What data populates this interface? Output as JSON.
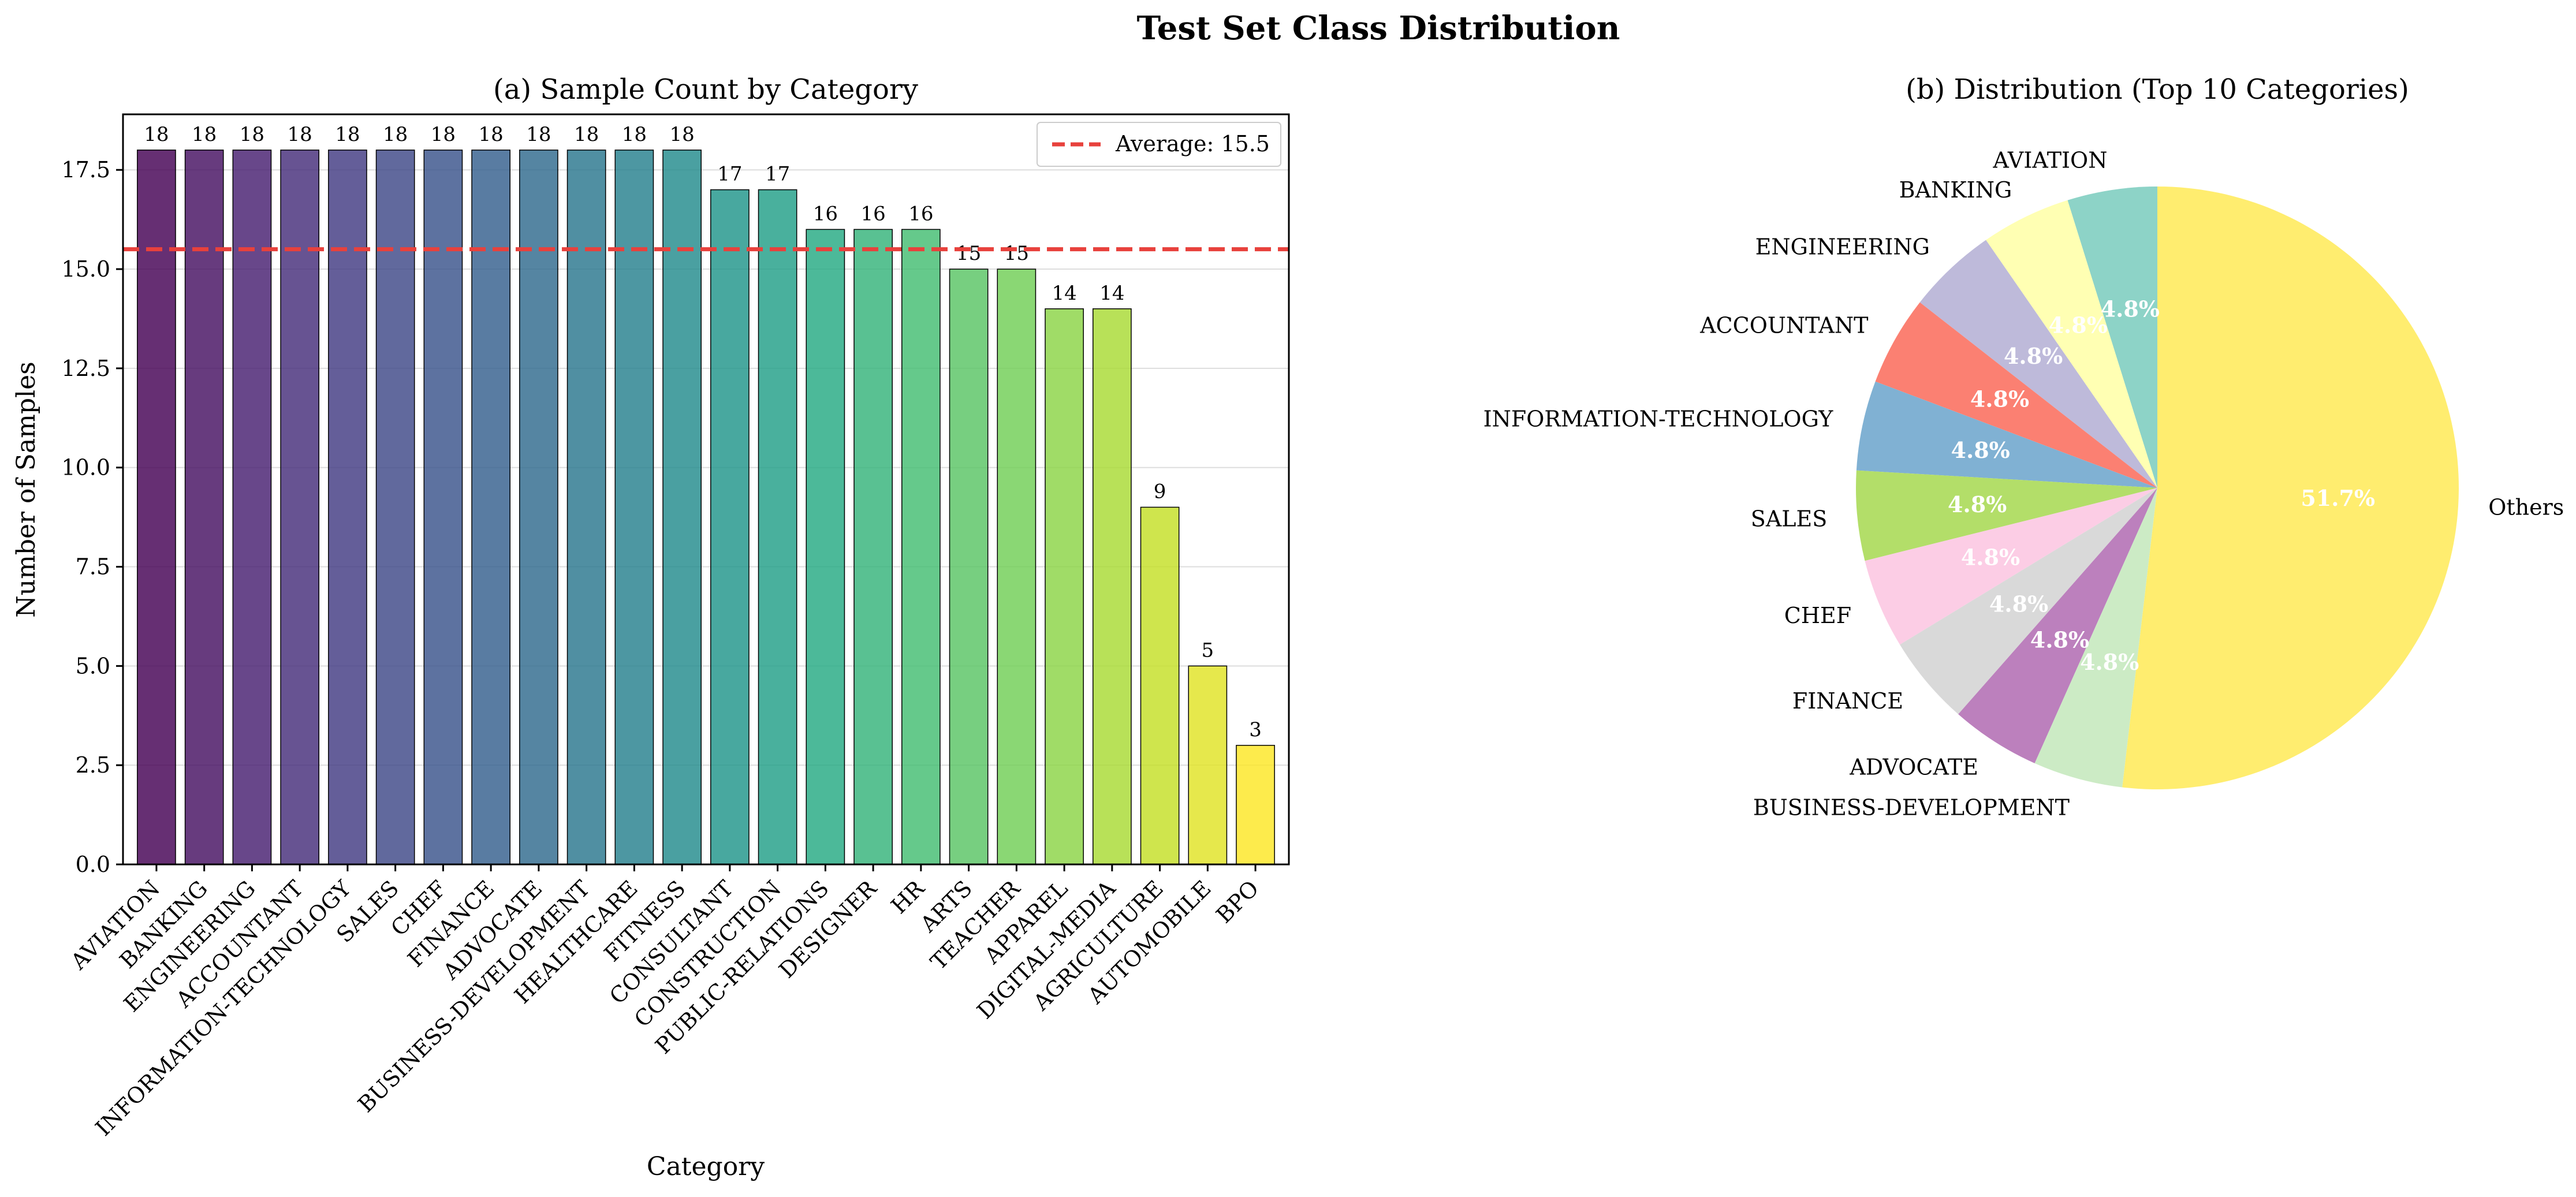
{
  "figure": {
    "suptitle": "Test Set Class Distribution"
  },
  "chart_data": [
    {
      "type": "bar",
      "title": "(a) Sample Count by Category",
      "xlabel": "Category",
      "ylabel": "Number of Samples",
      "ylim": [
        0,
        18.9
      ],
      "yticks": [
        "0.0",
        "2.5",
        "5.0",
        "7.5",
        "10.0",
        "12.5",
        "15.0",
        "17.5"
      ],
      "grid": "y",
      "colormap": "viridis",
      "categories": [
        "AVIATION",
        "BANKING",
        "ENGINEERING",
        "ACCOUNTANT",
        "INFORMATION-TECHNOLOGY",
        "SALES",
        "CHEF",
        "FINANCE",
        "ADVOCATE",
        "BUSINESS-DEVELOPMENT",
        "HEALTHCARE",
        "FITNESS",
        "CONSULTANT",
        "CONSTRUCTION",
        "PUBLIC-RELATIONS",
        "DESIGNER",
        "HR",
        "ARTS",
        "TEACHER",
        "APPAREL",
        "DIGITAL-MEDIA",
        "AGRICULTURE",
        "AUTOMOBILE",
        "BPO"
      ],
      "values": [
        18,
        18,
        18,
        18,
        18,
        18,
        18,
        18,
        18,
        18,
        18,
        18,
        17,
        17,
        16,
        16,
        16,
        15,
        15,
        14,
        14,
        9,
        5,
        3
      ],
      "data_labels": [
        "18",
        "18",
        "18",
        "18",
        "18",
        "18",
        "18",
        "18",
        "18",
        "18",
        "18",
        "18",
        "17",
        "17",
        "16",
        "16",
        "16",
        "15",
        "15",
        "14",
        "14",
        "9",
        "5",
        "3"
      ],
      "reference_line": {
        "value": 15.5,
        "label": "Average: 15.5",
        "color": "#e8413c",
        "style": "dashed"
      },
      "legend": {
        "placement": "top-right"
      }
    },
    {
      "type": "pie",
      "title": "(b) Distribution (Top 10 Categories)",
      "start": "top, counter-clockwise",
      "labels": [
        "AVIATION",
        "BANKING",
        "ENGINEERING",
        "ACCOUNTANT",
        "INFORMATION-TECHNOLOGY",
        "SALES",
        "CHEF",
        "FINANCE",
        "ADVOCATE",
        "BUSINESS-DEVELOPMENT",
        "Others"
      ],
      "values": [
        4.8,
        4.8,
        4.8,
        4.8,
        4.8,
        4.8,
        4.8,
        4.8,
        4.8,
        4.8,
        51.7
      ],
      "pct_labels": [
        "4.8%",
        "4.8%",
        "4.8%",
        "4.8%",
        "4.8%",
        "4.8%",
        "4.8%",
        "4.8%",
        "4.8%",
        "4.8%",
        "51.7%"
      ],
      "colors": [
        "#8dd3c7",
        "#ffffb3",
        "#bebada",
        "#fb8072",
        "#80b1d3",
        "#b3de69",
        "#fccde5",
        "#d9d9d9",
        "#bc80bd",
        "#ccebc5",
        "#ffed6f"
      ]
    }
  ]
}
